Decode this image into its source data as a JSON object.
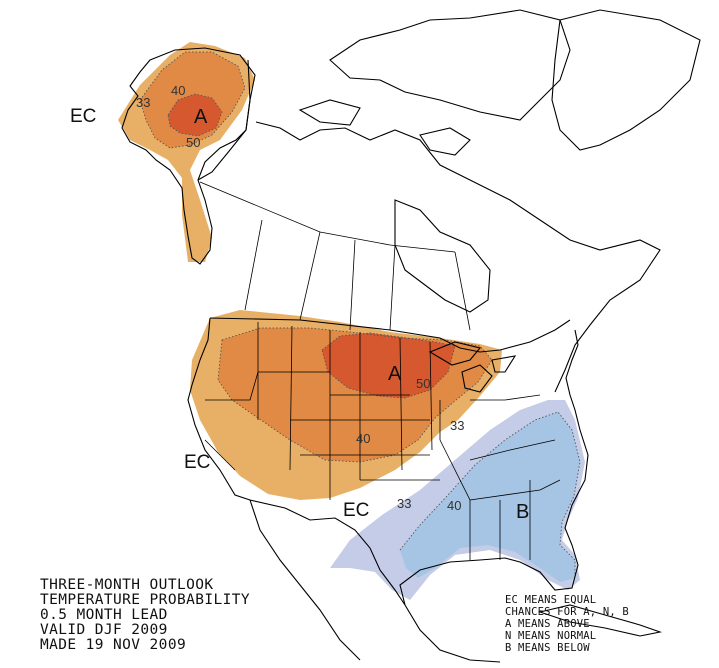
{
  "caption": {
    "line1": "THREE-MONTH OUTLOOK",
    "line2": "TEMPERATURE PROBABILITY",
    "line3": "0.5 MONTH LEAD",
    "line4": "VALID DJF 2009",
    "line5": "MADE 19 NOV 2009"
  },
  "legend": {
    "line1": "EC MEANS EQUAL",
    "line2": "CHANCES FOR A, N, B",
    "line3": "A MEANS ABOVE",
    "line4": "N MEANS NORMAL",
    "line5": "B MEANS BELOW"
  },
  "regions": {
    "alaska_label": "A",
    "central_label": "A",
    "southeast_label": "B",
    "ec_alaska": "EC",
    "ec_west": "EC",
    "ec_south": "EC"
  },
  "contours": {
    "ak_33": "33",
    "ak_40": "40",
    "ak_50": "50",
    "us_50": "50",
    "us_40": "40",
    "us_33": "33",
    "se_33": "33",
    "se_40": "40"
  },
  "colors": {
    "above_33": "#e8b066",
    "above_40": "#e18a45",
    "above_50": "#d6582e",
    "below_33": "#c4cce8",
    "below_40": "#a6c4e4"
  }
}
